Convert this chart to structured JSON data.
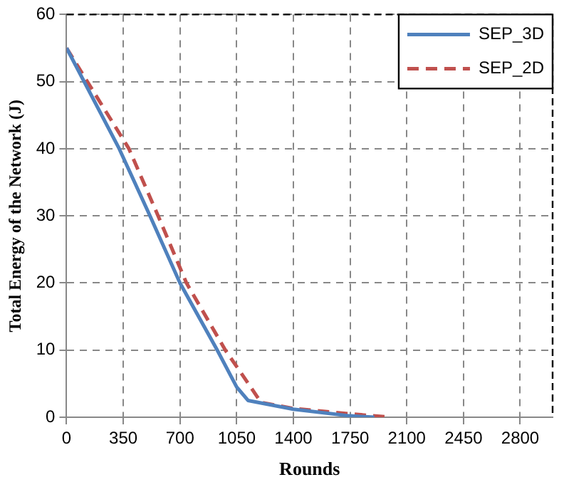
{
  "chart_data": {
    "type": "line",
    "xlabel": "Rounds",
    "ylabel": "Total Energy of the Network (J)",
    "xlim": [
      0,
      3000
    ],
    "xticks": [
      0,
      350,
      700,
      1050,
      1400,
      1750,
      2100,
      2450,
      2800
    ],
    "ylim": [
      0,
      60
    ],
    "yticks": [
      0,
      10,
      20,
      30,
      40,
      50,
      60
    ],
    "grid": true,
    "legend": "top right",
    "marker": "none",
    "series": [
      {
        "name": "SEP_3D",
        "color": "#4f81bd",
        "line_style": "solid",
        "x": [
          0,
          325,
          515,
          700,
          930,
          1050,
          1120,
          1400,
          1750,
          1900
        ],
        "values": [
          55,
          40,
          30,
          20,
          10,
          4.5,
          2.5,
          1.2,
          0.2,
          0
        ]
      },
      {
        "name": "SEP_2D",
        "color": "#c0504d",
        "line_style": "dashed",
        "x": [
          0,
          385,
          565,
          740,
          980,
          1125,
          1200,
          1400,
          1750,
          2000
        ],
        "values": [
          55,
          40,
          30,
          20,
          10,
          4.9,
          2.2,
          1.3,
          0.5,
          0
        ]
      }
    ]
  }
}
